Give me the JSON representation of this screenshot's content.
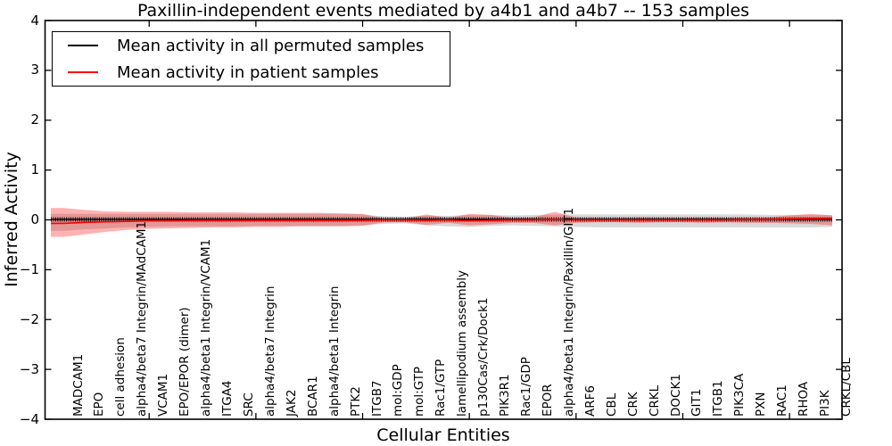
{
  "title": "Paxillin-independent events mediated by a4b1 and a4b7 -- 153 samples",
  "axes": {
    "ylabel": "Inferred Activity",
    "xlabel": "Cellular Entities",
    "yticks": [
      "4",
      "3",
      "2",
      "1",
      "0",
      "−1",
      "−2",
      "−3",
      "−4"
    ]
  },
  "legend": {
    "entries": [
      {
        "label": "Mean activity in all permuted samples",
        "color": "#000000"
      },
      {
        "label": "Mean activity in patient samples",
        "color": "#ff0000"
      }
    ]
  },
  "chart_data": {
    "type": "line",
    "title": "Paxillin-independent events mediated by a4b1 and a4b7 -- 153 samples",
    "xlabel": "Cellular Entities",
    "ylabel": "Inferred Activity",
    "ylim": [
      -4,
      4
    ],
    "grid": false,
    "legend_position": "upper left",
    "xtick_mark_indices": [
      4,
      9,
      14,
      19,
      24,
      29,
      34
    ],
    "categories": [
      "MADCAM1",
      "EPO",
      "cell adhesion",
      "alpha4/beta7 Integrin/MAdCAM1",
      "VCAM1",
      "EPO/EPOR (dimer)",
      "alpha4/beta1 Integrin/VCAM1",
      "ITGA4",
      "SRC",
      "alpha4/beta7 Integrin",
      "JAK2",
      "BCAR1",
      "alpha4/beta1 Integrin",
      "PTK2",
      "ITGB7",
      "mol:GDP",
      "mol:GTP",
      "Rac1/GTP",
      "lamellipodium assembly",
      "p130Cas/Crk/Dock1",
      "PIK3R1",
      "Rac1/GDP",
      "EPOR",
      "alpha4/beta1 Integrin/Paxillin/GIT1",
      "ARF6",
      "CBL",
      "CRK",
      "CRKL",
      "DOCK1",
      "GIT1",
      "ITGB1",
      "PIK3CA",
      "PXN",
      "RAC1",
      "RHOA",
      "PI3K",
      "CRKL/CBL"
    ],
    "series": [
      {
        "name": "Mean activity in all permuted samples",
        "color": "#000000",
        "values": [
          0.01,
          0.01,
          0.01,
          0.01,
          0.01,
          0.01,
          0.01,
          0.01,
          0.01,
          0.01,
          0.01,
          0.01,
          0.01,
          0.01,
          0.01,
          0.01,
          0.01,
          0.01,
          0.01,
          0.01,
          0.01,
          0.01,
          0.01,
          0.01,
          0.01,
          0.01,
          0.01,
          0.01,
          0.01,
          0.01,
          0.01,
          0.01,
          0.01,
          0.01,
          0.01,
          0.01,
          0.01
        ]
      },
      {
        "name": "Mean activity in patient samples",
        "color": "#ff0000",
        "values": [
          -0.07,
          -0.05,
          -0.04,
          -0.03,
          -0.02,
          -0.02,
          -0.01,
          -0.01,
          -0.01,
          -0.01,
          -0.01,
          -0.01,
          -0.01,
          -0.01,
          -0.01,
          0.0,
          0.0,
          -0.01,
          0.0,
          -0.02,
          -0.01,
          0.0,
          0.0,
          0.01,
          0.0,
          0.0,
          0.0,
          0.0,
          0.0,
          0.0,
          0.0,
          0.0,
          0.01,
          0.01,
          0.02,
          0.03,
          0.03
        ]
      }
    ],
    "bands": [
      {
        "name": "permuted samples spread",
        "color": "rgba(120,120,120,0.28)",
        "top": [
          0.12,
          0.12,
          0.12,
          0.12,
          0.12,
          0.12,
          0.12,
          0.12,
          0.12,
          0.12,
          0.12,
          0.12,
          0.12,
          0.12,
          0.11,
          0.07,
          0.06,
          0.09,
          0.08,
          0.1,
          0.1,
          0.09,
          0.1,
          0.11,
          0.11,
          0.11,
          0.11,
          0.11,
          0.11,
          0.11,
          0.11,
          0.11,
          0.11,
          0.1,
          0.1,
          0.1,
          0.1
        ],
        "bottom": [
          -0.22,
          -0.19,
          -0.17,
          -0.15,
          -0.14,
          -0.13,
          -0.13,
          -0.13,
          -0.13,
          -0.12,
          -0.12,
          -0.12,
          -0.12,
          -0.12,
          -0.11,
          -0.08,
          -0.07,
          -0.11,
          -0.13,
          -0.14,
          -0.12,
          -0.11,
          -0.12,
          -0.13,
          -0.14,
          -0.15,
          -0.15,
          -0.15,
          -0.15,
          -0.15,
          -0.15,
          -0.15,
          -0.15,
          -0.15,
          -0.15,
          -0.15,
          -0.14
        ]
      },
      {
        "name": "patient samples spread",
        "color": "rgba(255,0,0,0.30)",
        "top": [
          0.24,
          0.2,
          0.17,
          0.16,
          0.16,
          0.16,
          0.15,
          0.15,
          0.15,
          0.14,
          0.14,
          0.14,
          0.14,
          0.13,
          0.12,
          0.03,
          0.03,
          0.11,
          0.04,
          0.12,
          0.1,
          0.04,
          0.05,
          0.16,
          0.05,
          0.04,
          0.04,
          0.05,
          0.04,
          0.04,
          0.05,
          0.04,
          0.05,
          0.05,
          0.09,
          0.12,
          0.09
        ],
        "bottom": [
          -0.34,
          -0.29,
          -0.24,
          -0.2,
          -0.18,
          -0.17,
          -0.16,
          -0.15,
          -0.15,
          -0.14,
          -0.14,
          -0.13,
          -0.13,
          -0.13,
          -0.12,
          -0.05,
          -0.05,
          -0.1,
          -0.06,
          -0.11,
          -0.09,
          -0.06,
          -0.06,
          -0.11,
          -0.06,
          -0.05,
          -0.05,
          -0.06,
          -0.05,
          -0.05,
          -0.06,
          -0.05,
          -0.06,
          -0.06,
          -0.07,
          -0.08,
          -0.11
        ]
      }
    ]
  }
}
